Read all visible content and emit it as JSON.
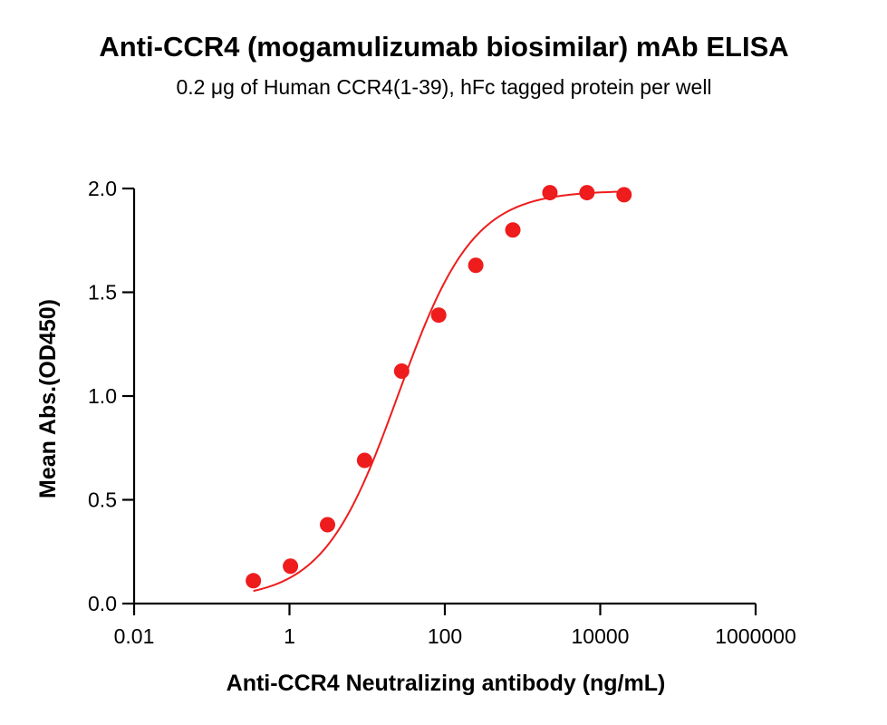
{
  "chart_data": {
    "type": "scatter",
    "title": "Anti-CCR4 (mogamulizumab biosimilar) mAb ELISA",
    "subtitle": "0.2 μg of Human CCR4(1-39), hFc tagged protein per well",
    "xlabel": "Anti-CCR4 Neutralizing antibody (ng/mL)",
    "ylabel": "Mean Abs.(OD450)",
    "xscale": "log",
    "xlim": [
      0.01,
      1000000
    ],
    "ylim": [
      0,
      2.0
    ],
    "xticks": [
      0.01,
      1,
      100,
      10000,
      1000000
    ],
    "xtick_labels": [
      "0.01",
      "1",
      "100",
      "10000",
      "1000000"
    ],
    "yticks": [
      0,
      0.5,
      1.0,
      1.5,
      2.0
    ],
    "ytick_labels": [
      "0.0",
      "0.5",
      "1.0",
      "1.5",
      "2.0"
    ],
    "grid": false,
    "legend": "none",
    "color": "#ee1c1c",
    "fit": "four-parameter logistic",
    "series": [
      {
        "x": [
          0.343,
          1.03,
          3.09,
          9.26,
          27.8,
          83.3,
          250,
          750,
          2250,
          6750,
          20250
        ],
        "y": [
          0.11,
          0.18,
          0.38,
          0.69,
          1.12,
          1.39,
          1.63,
          1.8,
          1.98,
          1.98,
          1.97
        ]
      }
    ]
  }
}
